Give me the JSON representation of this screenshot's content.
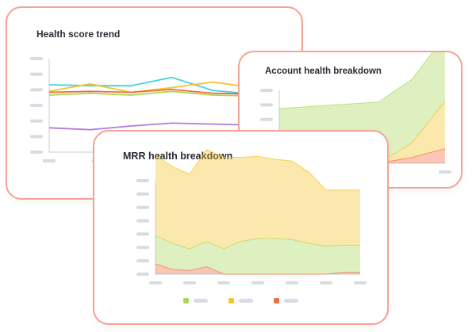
{
  "colors": {
    "card_border": "#f4a394",
    "axis": "#c9ced8",
    "placeholder": "#d7dbe3",
    "green": "#a8d85a",
    "yellow": "#f5c327",
    "red": "#f56a3d",
    "cyan": "#3fd4e0",
    "purple": "#b57be0"
  },
  "cards": {
    "trend": {
      "title": "Health score trend"
    },
    "account": {
      "title": "Account health breakdown"
    },
    "mrr": {
      "title": "MRR health breakdown"
    }
  },
  "chart_data": [
    {
      "type": "line",
      "title": "Health score trend",
      "x": [
        0,
        1,
        2,
        3,
        4,
        5,
        6
      ],
      "ylim": [
        0,
        100
      ],
      "series": [
        {
          "color": "cyan",
          "values": [
            72,
            71,
            71,
            80,
            66,
            62,
            60
          ]
        },
        {
          "color": "yellow",
          "values": [
            65,
            73,
            64,
            69,
            75,
            69,
            66
          ]
        },
        {
          "color": "red",
          "values": [
            64,
            65,
            64,
            67,
            63,
            62,
            61
          ]
        },
        {
          "color": "green",
          "values": [
            61,
            63,
            61,
            65,
            61,
            60,
            59
          ]
        },
        {
          "color": "purple",
          "values": [
            26,
            24,
            28,
            31,
            30,
            29,
            29
          ]
        }
      ]
    },
    {
      "type": "area",
      "title": "Account health breakdown",
      "x": [
        0,
        1,
        2,
        3,
        4,
        5
      ],
      "ylim": [
        0,
        100
      ],
      "series": [
        {
          "color": "red",
          "values": [
            0,
            0,
            0,
            0,
            8,
            20
          ]
        },
        {
          "color": "yellow",
          "values": [
            0,
            0,
            0,
            0,
            20,
            65
          ]
        },
        {
          "color": "green",
          "values": [
            75,
            78,
            81,
            84,
            87,
            90
          ]
        }
      ]
    },
    {
      "type": "area",
      "title": "MRR health breakdown",
      "x": [
        0,
        1,
        2,
        3,
        4,
        5,
        6,
        7,
        8,
        9,
        10,
        11,
        12
      ],
      "ylim": [
        0,
        100
      ],
      "series": [
        {
          "color": "red",
          "values": [
            11,
            5,
            4,
            8,
            0,
            0,
            0,
            0,
            0,
            0,
            0,
            2,
            2
          ]
        },
        {
          "color": "green",
          "values": [
            30,
            28,
            23,
            27,
            27,
            35,
            38,
            38,
            37,
            33,
            30,
            29,
            29
          ]
        },
        {
          "color": "yellow",
          "values": [
            86,
            82,
            80,
            98,
            98,
            90,
            88,
            85,
            84,
            76,
            60,
            59,
            59
          ]
        }
      ],
      "legend": [
        "green",
        "yellow",
        "red"
      ]
    }
  ]
}
